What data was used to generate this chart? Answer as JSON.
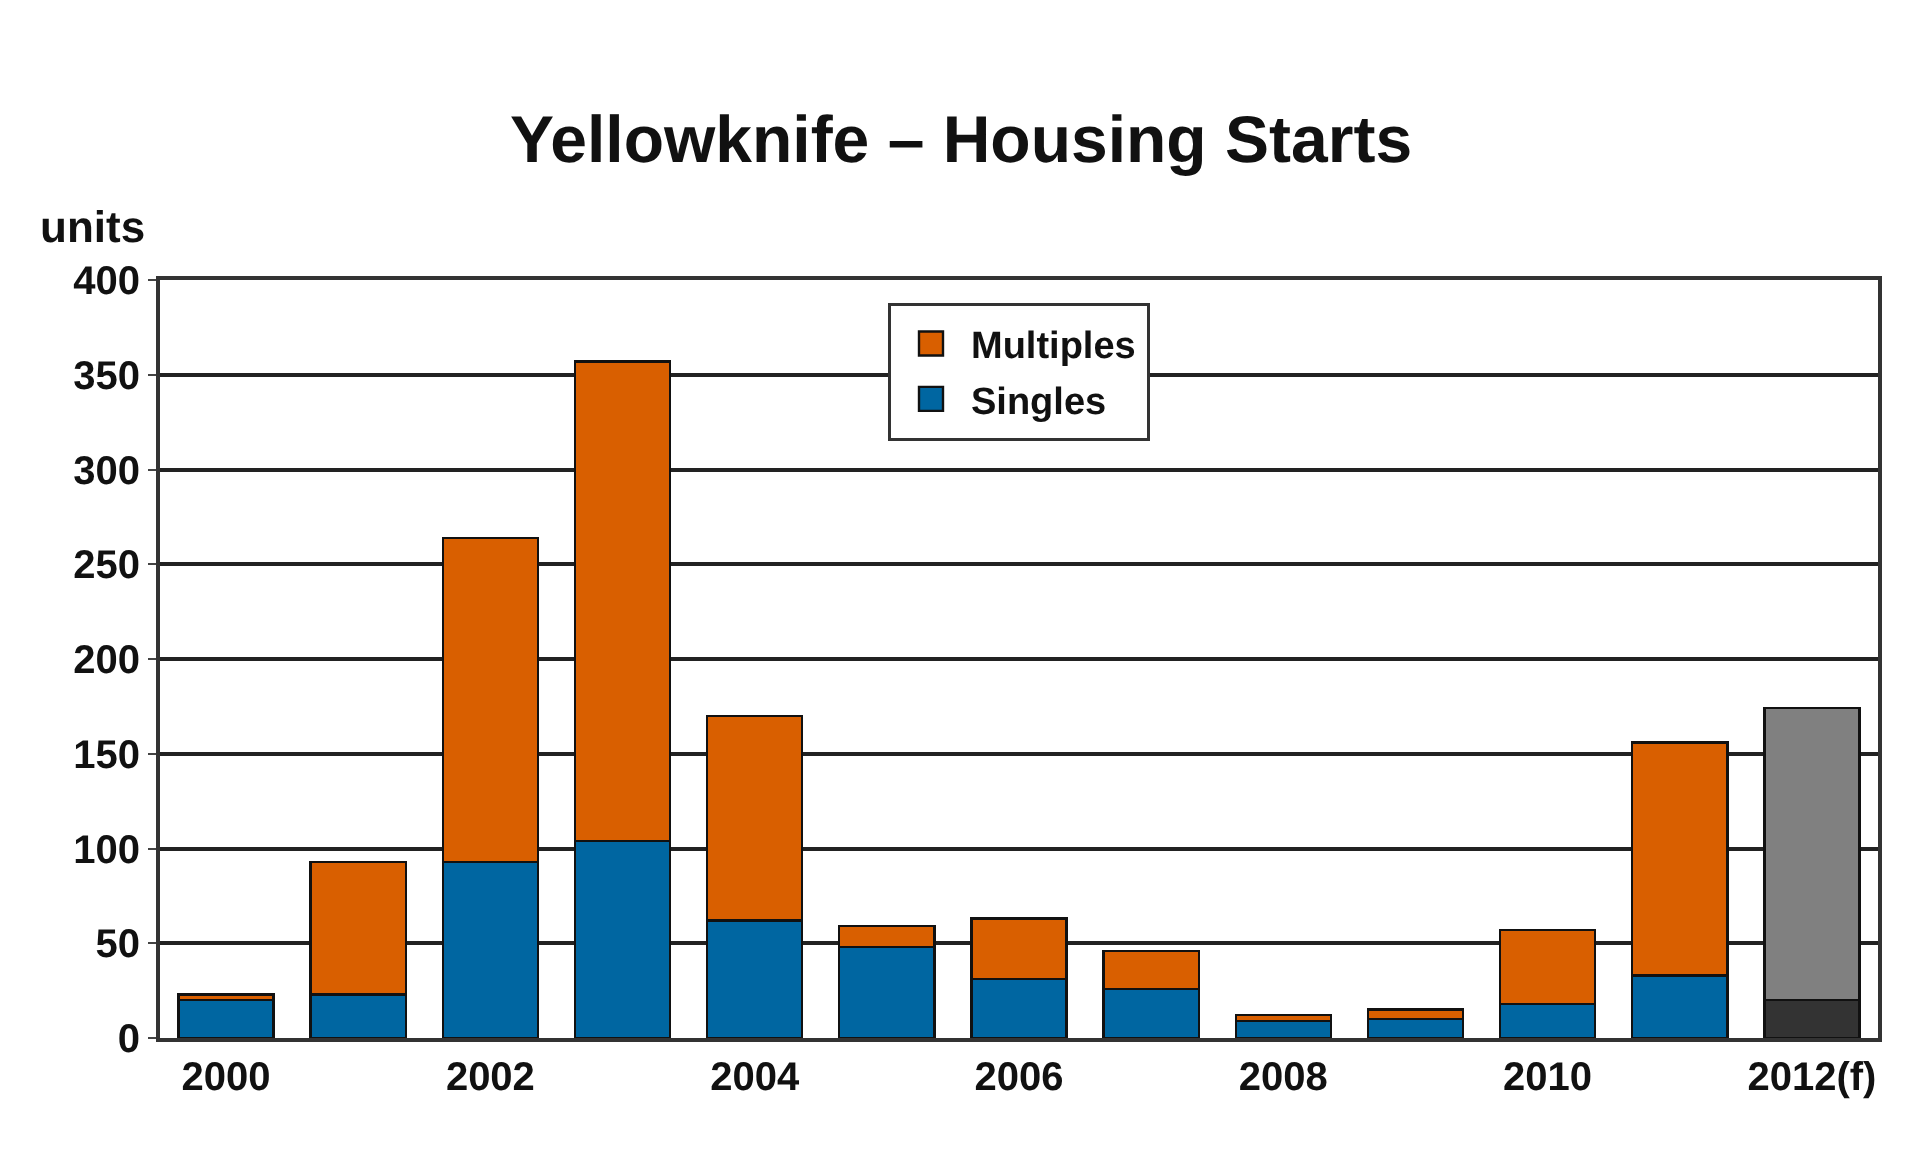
{
  "chart_data": {
    "type": "bar",
    "title": "Yellowknife – Housing Starts",
    "ylabel": "units",
    "categories": [
      "2000",
      null,
      "2002",
      null,
      "2004",
      null,
      "2006",
      null,
      "2008",
      null,
      "2010",
      null,
      "2012(f)"
    ],
    "stacked": true,
    "series": [
      {
        "name": "Singles",
        "color": "#0066a1",
        "colors": [
          "#0066a1",
          "#0066a1",
          "#0066a1",
          "#0066a1",
          "#0066a1",
          "#0066a1",
          "#0066a1",
          "#0066a1",
          "#0066a1",
          "#0066a1",
          "#0066a1",
          "#0066a1",
          "#333333"
        ],
        "values": [
          20,
          23,
          93,
          104,
          62,
          48,
          31,
          26,
          9,
          10,
          18,
          33,
          20
        ]
      },
      {
        "name": "Multiples",
        "color": "#d95f00",
        "colors": [
          "#d95f00",
          "#d95f00",
          "#d95f00",
          "#d95f00",
          "#d95f00",
          "#d95f00",
          "#d95f00",
          "#d95f00",
          "#d95f00",
          "#d95f00",
          "#d95f00",
          "#d95f00",
          "#808080"
        ],
        "values": [
          3,
          70,
          171,
          253,
          108,
          11,
          32,
          20,
          3,
          5,
          39,
          123,
          154
        ]
      }
    ],
    "ylim": [
      0,
      400
    ],
    "yticks": [
      0,
      50,
      100,
      150,
      200,
      250,
      300,
      350,
      400
    ],
    "grid": "y",
    "legend": "top"
  }
}
